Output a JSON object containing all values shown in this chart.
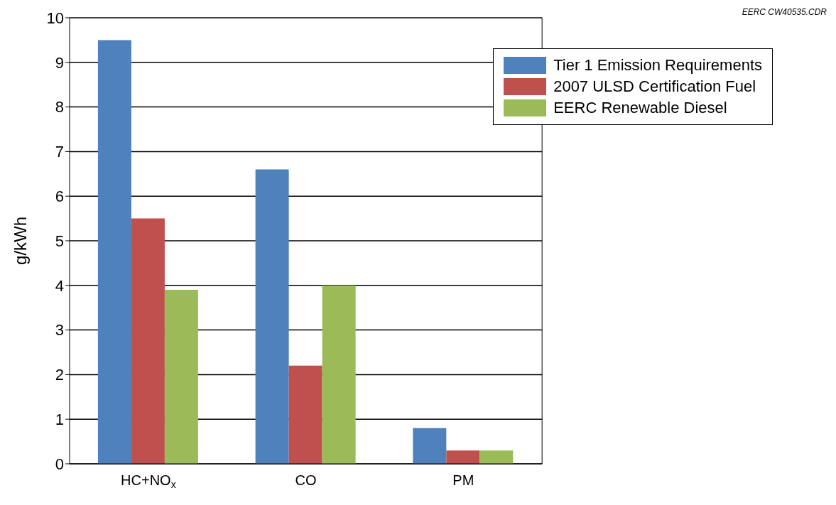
{
  "chart_data": {
    "type": "bar",
    "ylabel": "g/kWh",
    "categories": [
      "HC+NO$_{x}$",
      "CO",
      "PM"
    ],
    "series": [
      {
        "name": "Tier 1 Emission Requirements",
        "color": "#4f81bd",
        "values": [
          9.5,
          6.6,
          0.8
        ]
      },
      {
        "name": "2007 ULSD Certification Fuel",
        "color": "#c0504d",
        "values": [
          5.5,
          2.2,
          0.3
        ]
      },
      {
        "name": "EERC Renewable Diesel",
        "color": "#9bbb59",
        "values": [
          3.9,
          4.0,
          0.3
        ]
      }
    ],
    "ylim": [
      0,
      10
    ],
    "yticks": [
      0,
      1,
      2,
      3,
      4,
      5,
      6,
      7,
      8,
      9,
      10
    ],
    "grid": "y",
    "legend": "top right",
    "annotations": [
      "EERC CW40535.CDR"
    ]
  }
}
